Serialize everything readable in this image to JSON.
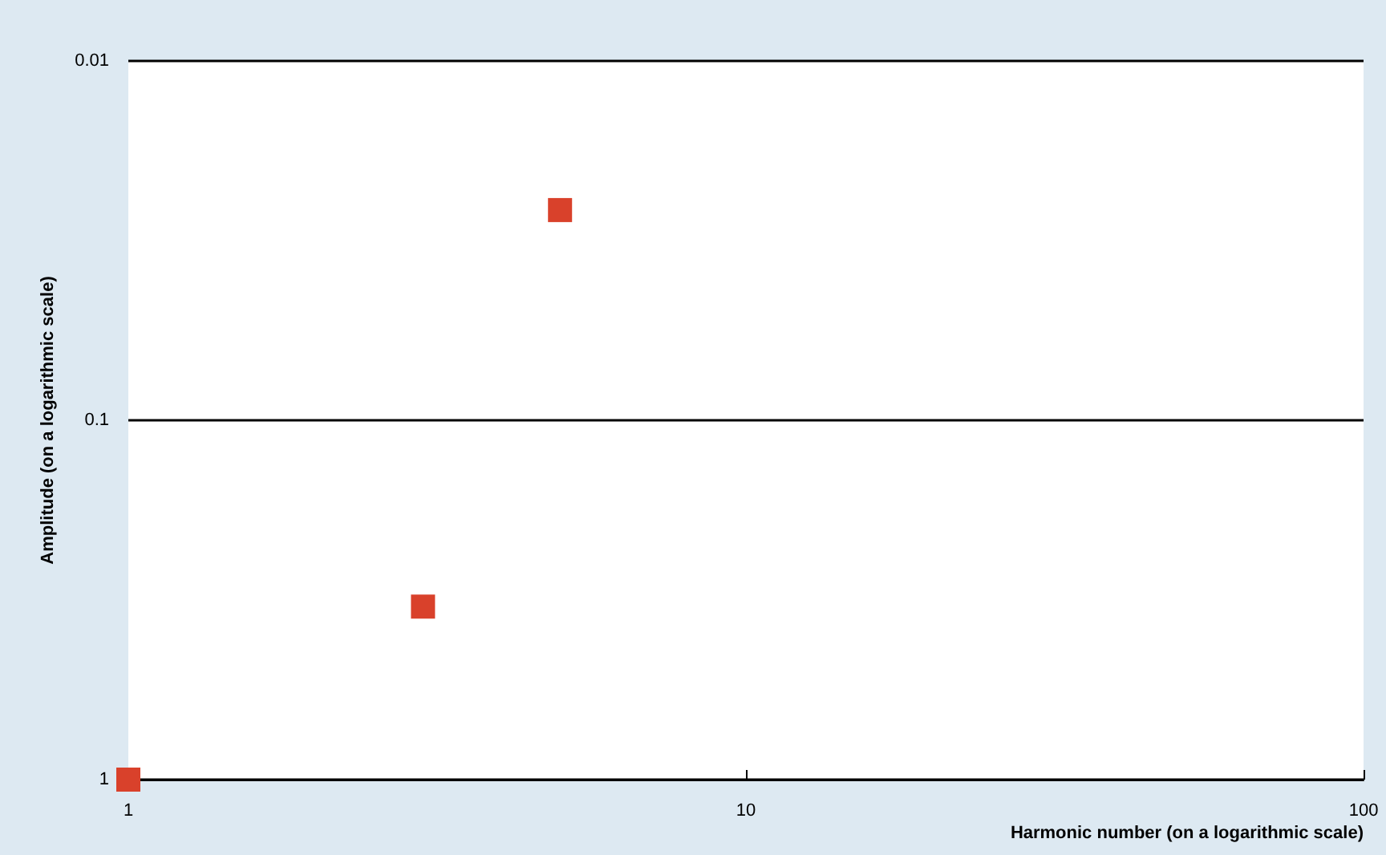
{
  "chart_data": {
    "type": "scatter",
    "xlabel": "Harmonic number (on a logarithmic scale)",
    "ylabel": "Amplitude (on a logarithmic scale)",
    "x": [
      1,
      3,
      5
    ],
    "series": [
      {
        "color": "#d9412b",
        "values": [
          1,
          0.33,
          0.026
        ]
      }
    ],
    "xlim": [
      1,
      100
    ],
    "xticks": [
      1,
      10,
      100
    ],
    "ylim": [
      1,
      0.01
    ],
    "yticks": [
      0.01,
      0.1,
      1
    ],
    "log": "xy",
    "grid": "y",
    "marker": "square"
  }
}
